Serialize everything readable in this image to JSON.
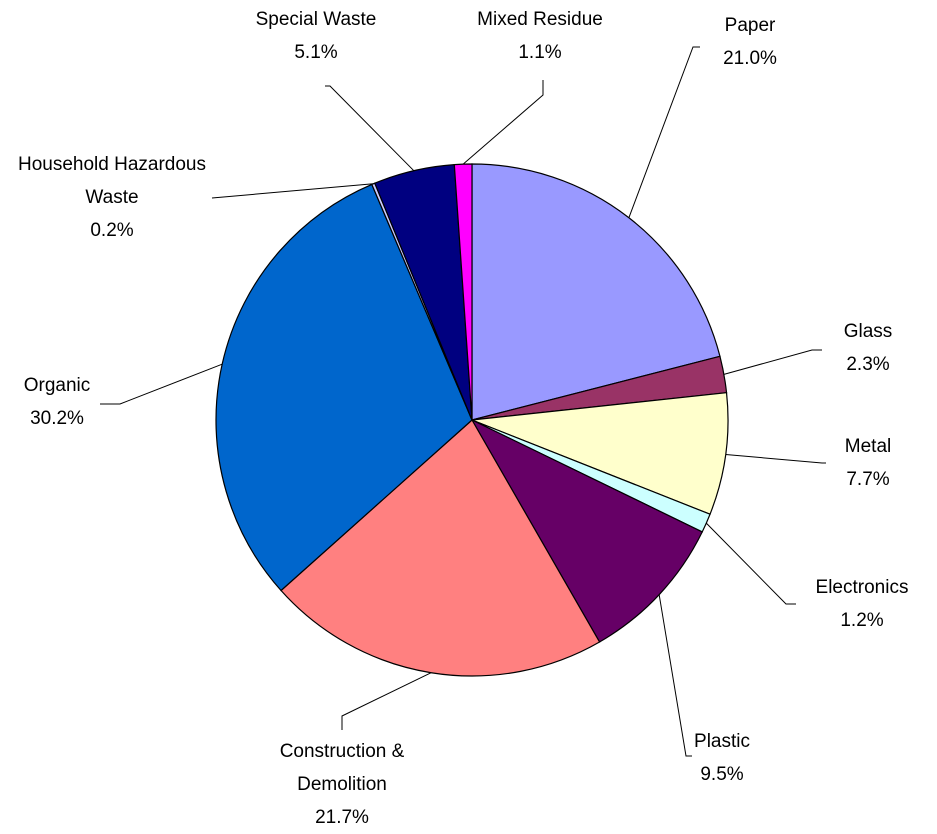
{
  "chart_data": {
    "type": "pie",
    "categories": [
      "Paper",
      "Glass",
      "Metal",
      "Electronics",
      "Plastic",
      "Construction & Demolition",
      "Organic",
      "Household Hazardous Waste",
      "Special Waste",
      "Mixed Residue"
    ],
    "values": [
      21.0,
      2.3,
      7.7,
      1.2,
      9.5,
      21.7,
      30.2,
      0.2,
      5.1,
      1.1
    ],
    "value_labels": [
      "21.0%",
      "2.3%",
      "7.7%",
      "1.2%",
      "9.5%",
      "21.7%",
      "30.2%",
      "0.2%",
      "5.1%",
      "1.1%"
    ],
    "colors": [
      "#9999ff",
      "#993366",
      "#ffffcc",
      "#ccffff",
      "#660066",
      "#ff8080",
      "#0066cc",
      "#ccccff",
      "#000080",
      "#ff00ff"
    ]
  }
}
